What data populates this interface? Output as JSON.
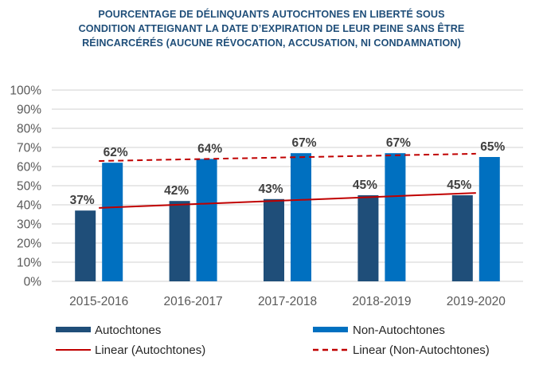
{
  "chart_data": {
    "type": "bar",
    "title_lines": [
      "POURCENTAGE DE DÉLINQUANTS AUTOCHTONES EN LIBERTÉ SOUS",
      "CONDITION ATTEIGNANT LA DATE D’EXPIRATION DE LEUR PEINE SANS ÊTRE",
      "RÉINCARCÉRÉS (AUCUNE RÉVOCATION, ACCUSATION, NI CONDAMNATION)"
    ],
    "categories": [
      "2015-2016",
      "2016-2017",
      "2017-2018",
      "2018-2019",
      "2019-2020"
    ],
    "series": [
      {
        "name": "Autochtones",
        "values": [
          37,
          42,
          43,
          45,
          45
        ],
        "color": "#1F4E79",
        "labels": [
          "37%",
          "42%",
          "43%",
          "45%",
          "45%"
        ]
      },
      {
        "name": "Non-Autochtones",
        "values": [
          62,
          64,
          67,
          67,
          65
        ],
        "color": "#0070C0",
        "labels": [
          "62%",
          "64%",
          "67%",
          "67%",
          "65%"
        ]
      }
    ],
    "trendlines": [
      {
        "name": "Linear (Autochtones)",
        "of": "Autochtones",
        "style": "solid",
        "color": "#C00000",
        "start": 38.4,
        "end": 46.2
      },
      {
        "name": "Linear (Non-Autochtones)",
        "of": "Non-Autochtones",
        "style": "dashed",
        "color": "#C00000",
        "start": 62.9,
        "end": 66.7
      }
    ],
    "ylim": [
      0,
      100
    ],
    "yticks": [
      0,
      10,
      20,
      30,
      40,
      50,
      60,
      70,
      80,
      90,
      100
    ],
    "ytick_labels": [
      "0%",
      "10%",
      "20%",
      "30%",
      "40%",
      "50%",
      "60%",
      "70%",
      "80%",
      "90%",
      "100%"
    ],
    "xlabel": "",
    "ylabel": "",
    "grid": true,
    "legend": {
      "position": "bottom",
      "entries": [
        "Autochtones",
        "Non-Autochtones",
        "Linear (Autochtones)",
        "Linear (Non-Autochtones)"
      ]
    }
  }
}
